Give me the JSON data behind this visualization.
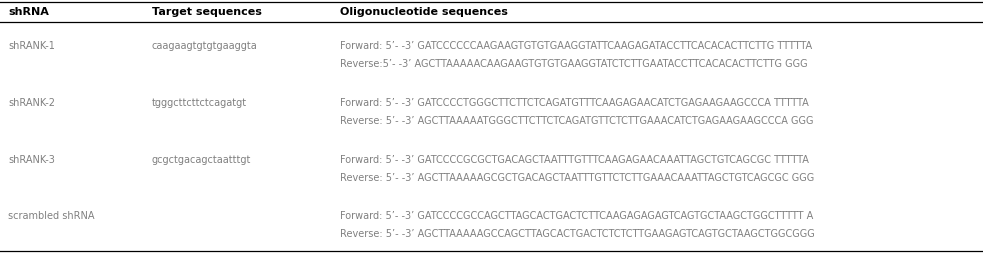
{
  "headers": [
    "shRNA",
    "Target sequences",
    "Oligonucleotide sequences"
  ],
  "rows": [
    {
      "shrna": "shRANK-1",
      "target": "caagaagtgtgtgaaggta",
      "fwd": "Forward: 5’- -3’ GATCCCCCCAAGAAGTGTGTGAAGGTATTCAAGAGATACCTTCACACACTTCTTG TTTTTA",
      "rev": "Reverse:5’- -3’ AGCTTAAAAACAAGAAGTGTGTGAAGGTATCTCTTGAATACCTTCACACACTTCTTG GGG"
    },
    {
      "shrna": "shRANK-2",
      "target": "tgggcttcttctcagatgt",
      "fwd": "Forward: 5’- -3’ GATCCCCTGGGCTTCTTCTCAGATGTTTCAAGAGAACATCTGAGAAGAAGCCCA TTTTTA",
      "rev": "Reverse: 5’- -3’ AGCTTAAAAATGGGCTTCTTCTCAGATGTTCTCTTGAAACATCTGAGAAGAAGCCCA GGG"
    },
    {
      "shrna": "shRANK-3",
      "target": "gcgctgacagctaatttgt",
      "fwd": "Forward: 5’- -3’ GATCCCCGCGCTGACAGCTAATTTGTTTCAAGAGAACAAATTAGCTGTCAGCGC TTTTTA",
      "rev": "Reverse: 5’- -3’ AGCTTAAAAAGCGCTGACAGCTAATTTGTTCTCTTGAAACAAATTAGCTGTCAGCGC GGG"
    },
    {
      "shrna": "scrambled shRNA",
      "target": "",
      "fwd": "Forward: 5’- -3’ GATCCCCGCCAGCTTAGCACTGACTCTTCAAGAGAGAGTCAGTGCTAAGCTGGCTTTTT A",
      "rev": "Reverse: 5’- -3’ AGCTTAAAAAGCCAGCTTAGCACTGACTCTCTCTTGAAGAGTCAGTGCTAAGCTGGCGGG"
    }
  ],
  "header_fontsize": 8.0,
  "text_fontsize": 7.0,
  "header_color": "#000000",
  "text_color": "#808080",
  "bg_color": "#ffffff",
  "line_color": "#000000"
}
